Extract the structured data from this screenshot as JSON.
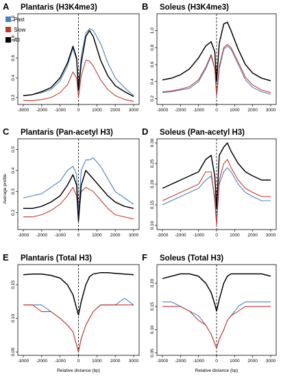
{
  "figure": {
    "ylabel": "Average profile",
    "xlabel": "Relative distance (bp)"
  },
  "legend": [
    {
      "label": "Fast",
      "color": "#4a7fc1"
    },
    {
      "label": "Slow",
      "color": "#c0392b"
    },
    {
      "label": "All",
      "color": "#000000"
    }
  ],
  "colors": {
    "fast": "#4a7fc1",
    "slow": "#c0392b",
    "all": "#000000"
  },
  "chart_data": [
    {
      "letter": "A",
      "title": "Plantaris (H3K4me3)",
      "type": "line",
      "xlim": [
        -3000,
        3000
      ],
      "ylim": [
        0.13,
        1.05
      ],
      "xticks": [
        -3000,
        -2000,
        -1000,
        0,
        1000,
        2000,
        3000
      ],
      "yticks": [
        0.2,
        0.4,
        0.6,
        0.8,
        1.0
      ],
      "ytick_labels": [
        "0.2",
        "0.4",
        "0.6",
        "0.8",
        "1.0"
      ],
      "show_xlabel": false,
      "series": [
        {
          "name": "Fast",
          "x": [
            -3000,
            -2500,
            -2000,
            -1500,
            -1000,
            -600,
            -300,
            -100,
            0,
            150,
            400,
            600,
            800,
            1200,
            1600,
            2000,
            2500,
            3000
          ],
          "values": [
            0.22,
            0.23,
            0.25,
            0.28,
            0.37,
            0.52,
            0.7,
            0.58,
            0.3,
            0.62,
            0.85,
            0.9,
            0.88,
            0.75,
            0.55,
            0.4,
            0.3,
            0.22
          ]
        },
        {
          "name": "Slow",
          "x": [
            -3000,
            -2500,
            -2000,
            -1500,
            -1000,
            -600,
            -300,
            -100,
            0,
            150,
            400,
            600,
            800,
            1200,
            1600,
            2000,
            2500,
            3000
          ],
          "values": [
            0.17,
            0.17,
            0.18,
            0.2,
            0.25,
            0.33,
            0.46,
            0.4,
            0.2,
            0.42,
            0.58,
            0.57,
            0.52,
            0.38,
            0.28,
            0.22,
            0.18,
            0.16
          ]
        },
        {
          "name": "All",
          "x": [
            -3000,
            -2500,
            -2000,
            -1500,
            -1000,
            -600,
            -300,
            -100,
            0,
            150,
            400,
            600,
            800,
            1200,
            1600,
            2000,
            2500,
            3000
          ],
          "values": [
            0.22,
            0.23,
            0.26,
            0.3,
            0.4,
            0.55,
            0.72,
            0.6,
            0.28,
            0.55,
            0.82,
            0.88,
            0.82,
            0.58,
            0.42,
            0.32,
            0.26,
            0.21
          ]
        }
      ]
    },
    {
      "letter": "B",
      "title": "Soleus (H3K4me3)",
      "type": "line",
      "xlim": [
        -3000,
        3000
      ],
      "ylim": [
        0.13,
        1.2
      ],
      "xticks": [
        -3000,
        -2000,
        -1000,
        0,
        1000,
        2000,
        3000
      ],
      "yticks": [
        0.2,
        0.4,
        0.6,
        0.8,
        1.0
      ],
      "ytick_labels": [
        "0.2",
        "0.4",
        "0.6",
        "0.8",
        "1.0"
      ],
      "show_xlabel": false,
      "series": [
        {
          "name": "Fast",
          "x": [
            -3000,
            -2500,
            -2000,
            -1500,
            -1000,
            -600,
            -300,
            -100,
            0,
            150,
            400,
            600,
            800,
            1200,
            1600,
            2000,
            2500,
            3000
          ],
          "values": [
            0.27,
            0.28,
            0.3,
            0.32,
            0.4,
            0.55,
            0.7,
            0.55,
            0.22,
            0.55,
            0.78,
            0.82,
            0.78,
            0.6,
            0.42,
            0.33,
            0.28,
            0.25
          ]
        },
        {
          "name": "Slow",
          "x": [
            -3000,
            -2500,
            -2000,
            -1500,
            -1000,
            -600,
            -300,
            -100,
            0,
            150,
            400,
            600,
            800,
            1200,
            1600,
            2000,
            2500,
            3000
          ],
          "values": [
            0.28,
            0.29,
            0.31,
            0.34,
            0.42,
            0.57,
            0.72,
            0.56,
            0.25,
            0.58,
            0.8,
            0.84,
            0.8,
            0.63,
            0.45,
            0.36,
            0.3,
            0.27
          ]
        },
        {
          "name": "All",
          "x": [
            -3000,
            -2500,
            -2000,
            -1500,
            -1000,
            -600,
            -300,
            -100,
            0,
            150,
            400,
            600,
            800,
            1200,
            1600,
            2000,
            2500,
            3000
          ],
          "values": [
            0.42,
            0.44,
            0.48,
            0.55,
            0.68,
            0.82,
            0.87,
            0.75,
            0.4,
            0.85,
            1.08,
            1.1,
            1.0,
            0.78,
            0.6,
            0.5,
            0.44,
            0.41
          ]
        }
      ]
    },
    {
      "letter": "C",
      "title": "Plantaris (Pan-acetyl H3)",
      "type": "line",
      "xlim": [
        -3000,
        3000
      ],
      "ylim": [
        0.12,
        0.55
      ],
      "xticks": [
        -3000,
        -2000,
        -1000,
        0,
        1000,
        2000,
        3000
      ],
      "yticks": [
        0.2,
        0.3,
        0.4,
        0.5
      ],
      "ytick_labels": [
        "0.2",
        "0.3",
        "0.4",
        "0.5"
      ],
      "show_xlabel": false,
      "series": [
        {
          "name": "Fast",
          "x": [
            -3000,
            -2500,
            -2000,
            -1500,
            -1000,
            -600,
            -300,
            -100,
            0,
            150,
            400,
            600,
            800,
            1200,
            1600,
            2000,
            2500,
            3000
          ],
          "values": [
            0.27,
            0.28,
            0.29,
            0.32,
            0.35,
            0.4,
            0.42,
            0.38,
            0.2,
            0.4,
            0.45,
            0.45,
            0.46,
            0.42,
            0.36,
            0.3,
            0.27,
            0.24
          ]
        },
        {
          "name": "Slow",
          "x": [
            -3000,
            -2500,
            -2000,
            -1500,
            -1000,
            -600,
            -300,
            -100,
            0,
            150,
            400,
            600,
            800,
            1200,
            1600,
            2000,
            2500,
            3000
          ],
          "values": [
            0.18,
            0.18,
            0.19,
            0.21,
            0.24,
            0.28,
            0.32,
            0.28,
            0.17,
            0.3,
            0.32,
            0.31,
            0.3,
            0.26,
            0.22,
            0.19,
            0.18,
            0.17
          ]
        },
        {
          "name": "All",
          "x": [
            -3000,
            -2500,
            -2000,
            -1500,
            -1000,
            -600,
            -300,
            -100,
            0,
            150,
            400,
            600,
            800,
            1200,
            1600,
            2000,
            2500,
            3000
          ],
          "values": [
            0.22,
            0.22,
            0.23,
            0.25,
            0.28,
            0.33,
            0.38,
            0.33,
            0.16,
            0.33,
            0.4,
            0.38,
            0.36,
            0.32,
            0.28,
            0.25,
            0.23,
            0.22
          ]
        }
      ]
    },
    {
      "letter": "D",
      "title": "Soleus (Pan-acetyl H3)",
      "type": "line",
      "xlim": [
        -3000,
        3000
      ],
      "ylim": [
        0.09,
        0.31
      ],
      "xticks": [
        -3000,
        -2000,
        -1000,
        0,
        1000,
        2000,
        3000
      ],
      "yticks": [
        0.1,
        0.15,
        0.2,
        0.25,
        0.3
      ],
      "ytick_labels": [
        "0.10",
        "0.15",
        "0.20",
        "0.25",
        "0.30"
      ],
      "show_xlabel": false,
      "series": [
        {
          "name": "Fast",
          "x": [
            -3000,
            -2500,
            -2000,
            -1500,
            -1000,
            -600,
            -300,
            -100,
            0,
            150,
            400,
            600,
            800,
            1200,
            1600,
            2000,
            2500,
            3000
          ],
          "values": [
            0.15,
            0.16,
            0.17,
            0.18,
            0.19,
            0.21,
            0.22,
            0.17,
            0.11,
            0.2,
            0.23,
            0.24,
            0.23,
            0.2,
            0.18,
            0.17,
            0.16,
            0.16
          ]
        },
        {
          "name": "Slow",
          "x": [
            -3000,
            -2500,
            -2000,
            -1500,
            -1000,
            -600,
            -300,
            -100,
            0,
            150,
            400,
            600,
            800,
            1200,
            1600,
            2000,
            2500,
            3000
          ],
          "values": [
            0.16,
            0.17,
            0.18,
            0.19,
            0.2,
            0.23,
            0.23,
            0.16,
            0.1,
            0.21,
            0.25,
            0.26,
            0.24,
            0.21,
            0.19,
            0.18,
            0.17,
            0.17
          ]
        },
        {
          "name": "All",
          "x": [
            -3000,
            -2500,
            -2000,
            -1500,
            -1000,
            -600,
            -300,
            -100,
            0,
            150,
            400,
            600,
            800,
            1200,
            1600,
            2000,
            2500,
            3000
          ],
          "values": [
            0.19,
            0.2,
            0.21,
            0.22,
            0.23,
            0.26,
            0.27,
            0.22,
            0.14,
            0.27,
            0.29,
            0.3,
            0.28,
            0.25,
            0.23,
            0.22,
            0.21,
            0.21
          ]
        }
      ]
    },
    {
      "letter": "E",
      "title": "Plantaris (Total H3)",
      "type": "line",
      "xlim": [
        -3000,
        3000
      ],
      "ylim": [
        0.045,
        0.18
      ],
      "xticks": [
        -3000,
        -2000,
        -1000,
        0,
        1000,
        2000,
        3000
      ],
      "yticks": [
        0.05,
        0.1,
        0.15
      ],
      "ytick_labels": [
        "0.05",
        "0.10",
        "0.15"
      ],
      "show_xlabel": true,
      "series": [
        {
          "name": "Fast",
          "x": [
            -3000,
            -2500,
            -2000,
            -1500,
            -1000,
            -600,
            -300,
            -100,
            0,
            150,
            400,
            600,
            800,
            1200,
            1600,
            2000,
            2500,
            3000
          ],
          "values": [
            0.12,
            0.12,
            0.12,
            0.11,
            0.1,
            0.09,
            0.08,
            0.06,
            0.05,
            0.07,
            0.09,
            0.1,
            0.11,
            0.12,
            0.12,
            0.12,
            0.13,
            0.12
          ]
        },
        {
          "name": "Slow",
          "x": [
            -3000,
            -2500,
            -2000,
            -1500,
            -1000,
            -600,
            -300,
            -100,
            0,
            150,
            400,
            600,
            800,
            1200,
            1600,
            2000,
            2500,
            3000
          ],
          "values": [
            0.12,
            0.12,
            0.11,
            0.11,
            0.1,
            0.09,
            0.08,
            0.06,
            0.05,
            0.07,
            0.09,
            0.1,
            0.11,
            0.12,
            0.12,
            0.12,
            0.12,
            0.12
          ]
        },
        {
          "name": "All",
          "x": [
            -3000,
            -2500,
            -2000,
            -1500,
            -1000,
            -600,
            -300,
            -100,
            0,
            150,
            400,
            600,
            800,
            1200,
            1600,
            2000,
            2500,
            3000
          ],
          "values": [
            0.165,
            0.166,
            0.166,
            0.164,
            0.16,
            0.15,
            0.135,
            0.115,
            0.105,
            0.125,
            0.15,
            0.162,
            0.166,
            0.168,
            0.168,
            0.167,
            0.166,
            0.165
          ]
        }
      ]
    },
    {
      "letter": "F",
      "title": "Soleus (Total H3)",
      "type": "line",
      "xlim": [
        -3000,
        3000
      ],
      "ylim": [
        0.045,
        0.24
      ],
      "xticks": [
        -3000,
        -2000,
        -1000,
        0,
        1000,
        2000,
        3000
      ],
      "yticks": [
        0.05,
        0.1,
        0.15,
        0.2
      ],
      "ytick_labels": [
        "0.05",
        "0.10",
        "0.15",
        "0.20"
      ],
      "show_xlabel": true,
      "series": [
        {
          "name": "Fast",
          "x": [
            -3000,
            -2500,
            -2000,
            -1500,
            -1000,
            -600,
            -300,
            -100,
            0,
            150,
            400,
            600,
            800,
            1200,
            1600,
            2000,
            2500,
            3000
          ],
          "values": [
            0.16,
            0.16,
            0.15,
            0.14,
            0.13,
            0.11,
            0.09,
            0.07,
            0.06,
            0.08,
            0.1,
            0.12,
            0.13,
            0.15,
            0.16,
            0.16,
            0.16,
            0.16
          ]
        },
        {
          "name": "Slow",
          "x": [
            -3000,
            -2500,
            -2000,
            -1500,
            -1000,
            -600,
            -300,
            -100,
            0,
            150,
            400,
            600,
            800,
            1200,
            1600,
            2000,
            2500,
            3000
          ],
          "values": [
            0.15,
            0.15,
            0.15,
            0.14,
            0.12,
            0.11,
            0.09,
            0.07,
            0.06,
            0.08,
            0.1,
            0.12,
            0.13,
            0.14,
            0.15,
            0.15,
            0.15,
            0.15
          ]
        },
        {
          "name": "All",
          "x": [
            -3000,
            -2500,
            -2000,
            -1500,
            -1000,
            -600,
            -300,
            -100,
            0,
            150,
            400,
            600,
            800,
            1200,
            1600,
            2000,
            2500,
            3000
          ],
          "values": [
            0.21,
            0.215,
            0.22,
            0.22,
            0.215,
            0.2,
            0.18,
            0.155,
            0.14,
            0.165,
            0.2,
            0.215,
            0.22,
            0.22,
            0.22,
            0.22,
            0.22,
            0.215
          ]
        }
      ]
    }
  ]
}
